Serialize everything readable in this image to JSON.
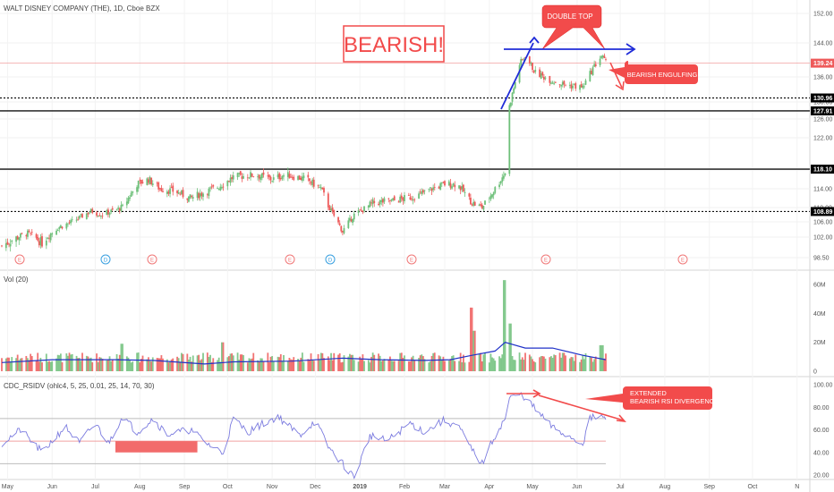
{
  "header": {
    "title": "WALT DISNEY COMPANY (THE), 1D, Cboe BZX"
  },
  "annotations": {
    "bearish": "BEARISH!",
    "double_top": "DOUBLE TOP",
    "bearish_engulfing": "BEARISH ENGULFING",
    "rsi_divergence_line1": "EXTENDED",
    "rsi_divergence_line2": "BEARISH RSI DIVERGENCE"
  },
  "colors": {
    "up": "#6ec07a",
    "down": "#ee5a5a",
    "annotation_red": "#f24b4b",
    "trend_blue": "#1f2bd8",
    "rsi_line": "#7b7bdf",
    "volume_ma": "#2032c8"
  },
  "chart_data": [
    {
      "type": "candlestick",
      "title": "WALT DISNEY COMPANY (THE), 1D, Cboe BZX",
      "x_ticks": [
        "May",
        "Jun",
        "Jul",
        "Aug",
        "Sep",
        "Oct",
        "Nov",
        "Dec",
        "2019",
        "Feb",
        "Mar",
        "Apr",
        "May",
        "Jun",
        "Jul",
        "Aug",
        "Sep",
        "Oct",
        "N"
      ],
      "y_ticks": [
        98.5,
        102.0,
        106.0,
        110.0,
        114.0,
        118.0,
        122.0,
        126.0,
        130.0,
        136.0,
        144.0,
        152.0
      ],
      "y_tick_labels": [
        "98.50",
        "102.00",
        "106.00",
        "110.00",
        "114.00",
        "118.00",
        "122.00",
        "126.00",
        "130.00",
        "136.00",
        "144.00",
        "152.00"
      ],
      "ylim": [
        96.8,
        153.0
      ],
      "price_labels": [
        {
          "label": "139.24",
          "value": 139.24,
          "color": "#ee5a5a"
        },
        {
          "label": "130.96",
          "value": 130.96,
          "color": "#000000"
        },
        {
          "label": "127.91",
          "value": 127.91,
          "color": "#000000"
        },
        {
          "label": "118.10",
          "value": 118.1,
          "color": "#000000"
        },
        {
          "label": "108.89",
          "value": 108.89,
          "color": "#000000"
        }
      ],
      "horizontal_levels": [
        {
          "value": 130.96,
          "style": "dotted"
        },
        {
          "value": 127.91,
          "style": "solid"
        },
        {
          "value": 118.1,
          "style": "solid"
        },
        {
          "value": 108.89,
          "style": "dotted"
        }
      ],
      "event_markers": [
        {
          "label": "E",
          "kind": "earnings"
        },
        {
          "label": "D",
          "kind": "dividend"
        },
        {
          "label": "E",
          "kind": "earnings"
        },
        {
          "label": "E",
          "kind": "earnings"
        },
        {
          "label": "D",
          "kind": "dividend"
        },
        {
          "label": "E",
          "kind": "earnings"
        },
        {
          "label": "E",
          "kind": "earnings"
        },
        {
          "label": "E",
          "kind": "earnings"
        }
      ],
      "close_path": [
        [
          "2018-04-27",
          100.5
        ],
        [
          "2018-05-15",
          103.0
        ],
        [
          "2018-05-25",
          101.0
        ],
        [
          "2018-06-05",
          104.5
        ],
        [
          "2018-06-15",
          106.0
        ],
        [
          "2018-06-28",
          109.0
        ],
        [
          "2018-07-05",
          108.0
        ],
        [
          "2018-07-20",
          110.0
        ],
        [
          "2018-07-30",
          115.0
        ],
        [
          "2018-08-07",
          116.0
        ],
        [
          "2018-08-15",
          114.0
        ],
        [
          "2018-08-25",
          113.5
        ],
        [
          "2018-09-05",
          112.0
        ],
        [
          "2018-09-25",
          114.5
        ],
        [
          "2018-10-05",
          116.5
        ],
        [
          "2018-10-20",
          117.0
        ],
        [
          "2018-11-01",
          116.0
        ],
        [
          "2018-11-10",
          117.0
        ],
        [
          "2018-11-25",
          116.0
        ],
        [
          "2018-12-05",
          114.0
        ],
        [
          "2018-12-20",
          103.5
        ],
        [
          "2018-12-28",
          108.0
        ],
        [
          "2019-01-10",
          111.0
        ],
        [
          "2019-01-25",
          111.5
        ],
        [
          "2019-02-10",
          112.5
        ],
        [
          "2019-02-20",
          114.0
        ],
        [
          "2019-03-01",
          115.0
        ],
        [
          "2019-03-10",
          115.0
        ],
        [
          "2019-03-20",
          111.0
        ],
        [
          "2019-03-27",
          110.0
        ],
        [
          "2019-04-05",
          114.0
        ],
        [
          "2019-04-12",
          117.5
        ],
        [
          "2019-04-15",
          129.0
        ],
        [
          "2019-04-22",
          139.0
        ],
        [
          "2019-04-26",
          141.0
        ],
        [
          "2019-05-03",
          137.0
        ],
        [
          "2019-05-15",
          135.0
        ],
        [
          "2019-05-25",
          134.0
        ],
        [
          "2019-06-05",
          133.5
        ],
        [
          "2019-06-12",
          138.0
        ],
        [
          "2019-06-18",
          141.0
        ],
        [
          "2019-06-21",
          139.24
        ]
      ]
    },
    {
      "type": "bar",
      "title": "Vol (20)",
      "y_tick_labels": [
        "0",
        "20M",
        "40M",
        "60M"
      ],
      "ylim": [
        0,
        66
      ],
      "spikes": [
        {
          "date": "2018-07-20",
          "value": 19,
          "direction": "up"
        },
        {
          "date": "2018-09-28",
          "value": 20,
          "direction": "down"
        },
        {
          "date": "2019-03-20",
          "value": 44,
          "direction": "down"
        },
        {
          "date": "2019-03-22",
          "value": 28,
          "direction": "down"
        },
        {
          "date": "2019-04-12",
          "value": 63,
          "direction": "up"
        },
        {
          "date": "2019-04-15",
          "value": 33,
          "direction": "up"
        },
        {
          "date": "2019-06-18",
          "value": 18,
          "direction": "up"
        }
      ],
      "volume_ma_path": [
        [
          "2018-04-27",
          6
        ],
        [
          "2018-06-01",
          8
        ],
        [
          "2018-07-15",
          8
        ],
        [
          "2018-08-10",
          7.5
        ],
        [
          "2018-09-15",
          5
        ],
        [
          "2018-10-05",
          6.5
        ],
        [
          "2018-11-15",
          7
        ],
        [
          "2018-12-20",
          9
        ],
        [
          "2019-01-15",
          8
        ],
        [
          "2019-02-15",
          7.5
        ],
        [
          "2019-03-05",
          8
        ],
        [
          "2019-03-20",
          11
        ],
        [
          "2019-04-05",
          14
        ],
        [
          "2019-04-12",
          20
        ],
        [
          "2019-04-26",
          16
        ],
        [
          "2019-05-15",
          16
        ],
        [
          "2019-06-05",
          11
        ],
        [
          "2019-06-21",
          8
        ]
      ]
    },
    {
      "type": "line",
      "title": "CDC_RSIDV (ohlc4, 5, 25, 0.01, 25, 14, 70, 30)",
      "y_tick_labels": [
        "20.00",
        "40.00",
        "60.00",
        "80.00",
        "100.00"
      ],
      "ylim": [
        13,
        103
      ],
      "levels": [
        70,
        50,
        30
      ],
      "rsi_path": [
        [
          "2018-04-27",
          48
        ],
        [
          "2018-05-10",
          60
        ],
        [
          "2018-05-25",
          40
        ],
        [
          "2018-06-10",
          63
        ],
        [
          "2018-06-20",
          48
        ],
        [
          "2018-07-01",
          66
        ],
        [
          "2018-07-10",
          48
        ],
        [
          "2018-07-20",
          72
        ],
        [
          "2018-07-30",
          58
        ],
        [
          "2018-08-10",
          70
        ],
        [
          "2018-08-20",
          56
        ],
        [
          "2018-09-05",
          60
        ],
        [
          "2018-09-20",
          45
        ],
        [
          "2018-09-28",
          40
        ],
        [
          "2018-10-05",
          70
        ],
        [
          "2018-10-15",
          58
        ],
        [
          "2018-10-25",
          65
        ],
        [
          "2018-11-05",
          72
        ],
        [
          "2018-11-20",
          55
        ],
        [
          "2018-12-01",
          68
        ],
        [
          "2018-12-10",
          45
        ],
        [
          "2018-12-20",
          30
        ],
        [
          "2018-12-28",
          18
        ],
        [
          "2019-01-08",
          55
        ],
        [
          "2019-01-20",
          50
        ],
        [
          "2019-02-05",
          66
        ],
        [
          "2019-02-15",
          58
        ],
        [
          "2019-02-28",
          68
        ],
        [
          "2019-03-10",
          64
        ],
        [
          "2019-03-20",
          42
        ],
        [
          "2019-03-27",
          30
        ],
        [
          "2019-04-05",
          55
        ],
        [
          "2019-04-12",
          70
        ],
        [
          "2019-04-15",
          88
        ],
        [
          "2019-04-22",
          91
        ],
        [
          "2019-04-26",
          89
        ],
        [
          "2019-05-03",
          78
        ],
        [
          "2019-05-15",
          62
        ],
        [
          "2019-05-25",
          55
        ],
        [
          "2019-06-05",
          48
        ],
        [
          "2019-06-10",
          70
        ],
        [
          "2019-06-18",
          72
        ],
        [
          "2019-06-21",
          68
        ]
      ],
      "shaded_region": {
        "start": "2018-07-15",
        "end": "2018-09-10",
        "from": 50,
        "to": 40
      }
    }
  ]
}
